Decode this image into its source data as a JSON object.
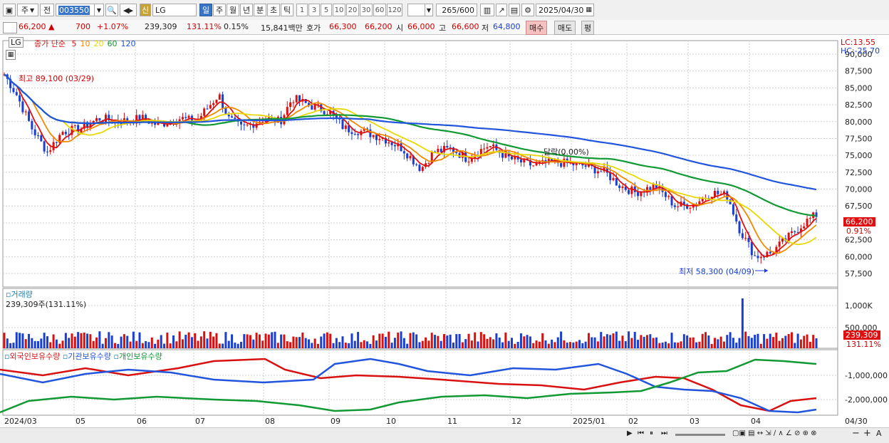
{
  "toolbar": {
    "type_sel": "주",
    "prev_label": "전",
    "code": "003550",
    "badge_new": "신",
    "stock_name": "LG",
    "periods": [
      "일",
      "주",
      "월",
      "년",
      "분",
      "초",
      "틱"
    ],
    "active_period": "일",
    "numbers": [
      "1",
      "3",
      "5",
      "10",
      "20",
      "30",
      "60",
      "120"
    ],
    "count": "265",
    "count_total": "/600",
    "date": "2025/04/30"
  },
  "info": {
    "price": "66,200",
    "change": "700",
    "change_pct": "+1.07%",
    "volume": "239,309",
    "volume_pct": "131.11%",
    "turnover": "0.15%",
    "amount": "15,841백만",
    "quote_label": "호가",
    "ask": "66,300",
    "bid": "66,200",
    "open_label": "시",
    "open": "66,000",
    "high_label": "고",
    "high": "66,600",
    "low_label": "저",
    "low": "64,800",
    "buy": "매수",
    "sell": "매도",
    "eval": "평"
  },
  "price_panel": {
    "name": "LG",
    "legend_prefix": "종가 단순",
    "ma": [
      {
        "label": "5",
        "color": "#e01010"
      },
      {
        "label": "10",
        "color": "#f08a00"
      },
      {
        "label": "20",
        "color": "#e8d800"
      },
      {
        "label": "60",
        "color": "#119933"
      },
      {
        "label": "120",
        "color": "#2255dd"
      }
    ],
    "lc": "LC:13.55",
    "hc": "HC:-25.70",
    "high_note": "최고 89,100 (03/29)",
    "low_note": "최저 58,300 (04/09)",
    "mid_note": "달락(0.00%)",
    "current": "66,200",
    "current_pct": "0.91%",
    "yticks": [
      "90,000",
      "87,500",
      "85,000",
      "82,500",
      "80,000",
      "77,500",
      "75,000",
      "72,500",
      "70,000",
      "67,500",
      "65,000",
      "62,500",
      "60,000",
      "57,500"
    ]
  },
  "volume_panel": {
    "title": "거래량",
    "value": "239,309주(131.11%)",
    "yticks": [
      "1,000K",
      "500,000"
    ],
    "current": "239,309",
    "current_pct": "131.11%"
  },
  "holding_panel": {
    "legend": [
      "외국인보유수량",
      "기관보유수량",
      "개인보유수량"
    ],
    "colors": [
      "#d81010",
      "#2255dd",
      "#119933"
    ],
    "yticks": [
      "-1,000,000",
      "-2,000,000"
    ]
  },
  "xaxis": [
    "2024/03",
    "05",
    "06",
    "07",
    "08",
    "09",
    "10",
    "11",
    "12",
    "2025/01",
    "02",
    "03",
    "04"
  ],
  "xaxis_right": "04/30"
}
